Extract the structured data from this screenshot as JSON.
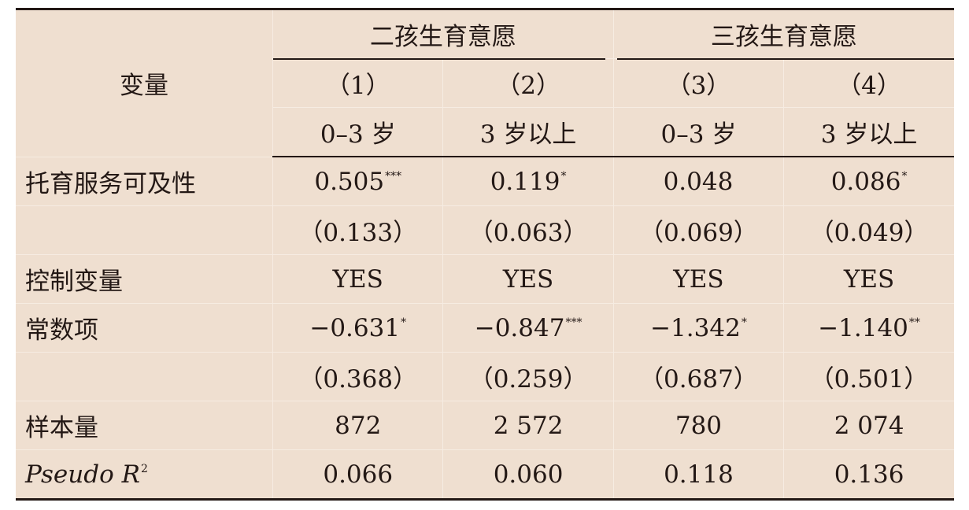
{
  "table": {
    "var_header": "变量",
    "groups": [
      "二孩生育意愿",
      "三孩生育意愿"
    ],
    "model_numbers": [
      "（1）",
      "（2）",
      "（3）",
      "（4）"
    ],
    "age_labels": [
      "0–3 岁",
      "3 岁以上",
      "0–3 岁",
      "3 岁以上"
    ],
    "rows": [
      {
        "label": "托育服务可及性",
        "cells": [
          {
            "v": "0.505",
            "s": "***"
          },
          {
            "v": "0.119",
            "s": "*"
          },
          {
            "v": "0.048",
            "s": ""
          },
          {
            "v": "0.086",
            "s": "*"
          }
        ]
      },
      {
        "label": "",
        "cells": [
          {
            "v": "（0.133）",
            "s": ""
          },
          {
            "v": "（0.063）",
            "s": ""
          },
          {
            "v": "（0.069）",
            "s": ""
          },
          {
            "v": "（0.049）",
            "s": ""
          }
        ]
      },
      {
        "label": "控制变量",
        "cells": [
          {
            "v": "YES",
            "s": ""
          },
          {
            "v": "YES",
            "s": ""
          },
          {
            "v": "YES",
            "s": ""
          },
          {
            "v": "YES",
            "s": ""
          }
        ]
      },
      {
        "label": "常数项",
        "cells": [
          {
            "v": "−0.631",
            "s": "*"
          },
          {
            "v": "−0.847",
            "s": "***"
          },
          {
            "v": "−1.342",
            "s": "*"
          },
          {
            "v": "−1.140",
            "s": "**"
          }
        ]
      },
      {
        "label": "",
        "cells": [
          {
            "v": "（0.368）",
            "s": ""
          },
          {
            "v": "（0.259）",
            "s": ""
          },
          {
            "v": "（0.687）",
            "s": ""
          },
          {
            "v": "（0.501）",
            "s": ""
          }
        ]
      },
      {
        "label": "样本量",
        "cells": [
          {
            "v": "872",
            "s": ""
          },
          {
            "v": "2 572",
            "s": ""
          },
          {
            "v": "780",
            "s": ""
          },
          {
            "v": "2 074",
            "s": ""
          }
        ]
      }
    ],
    "pseudo_r2": {
      "label": "Pseudo R",
      "exponent": "2",
      "cells": [
        "0.066",
        "0.060",
        "0.118",
        "0.136"
      ]
    }
  }
}
